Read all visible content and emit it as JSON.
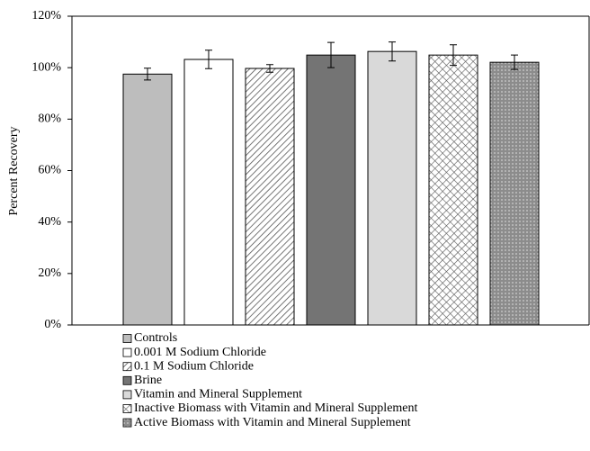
{
  "chart_data": {
    "type": "bar",
    "y_label": "Percent Recovery",
    "ylim": [
      0,
      120
    ],
    "yticks": [
      {
        "value": 0,
        "label": "0%"
      },
      {
        "value": 20,
        "label": "20%"
      },
      {
        "value": 40,
        "label": "40%"
      },
      {
        "value": 60,
        "label": "60%"
      },
      {
        "value": 80,
        "label": "80%"
      },
      {
        "value": 100,
        "label": "100%"
      },
      {
        "value": 120,
        "label": "120%"
      }
    ],
    "grid": false,
    "legend": "bottom",
    "series": [
      {
        "name": "Controls",
        "color": "#bdbdbd",
        "pattern": "solid",
        "values": [
          97.5
        ],
        "errors": [
          2.3
        ]
      },
      {
        "name": "0.001 M Sodium Chloride",
        "color": "#ffffff",
        "pattern": "solid",
        "values": [
          103.2
        ],
        "errors": [
          3.6
        ]
      },
      {
        "name": "0.1 M Sodium Chloride",
        "color": "#555555",
        "pattern": "diagonal",
        "values": [
          99.7
        ],
        "errors": [
          1.5
        ]
      },
      {
        "name": "Brine",
        "color": "#747474",
        "pattern": "solid",
        "values": [
          104.9
        ],
        "errors": [
          4.9
        ]
      },
      {
        "name": "Vitamin and Mineral Supplement",
        "color": "#d9d9d9",
        "pattern": "solid",
        "values": [
          106.3
        ],
        "errors": [
          3.7
        ]
      },
      {
        "name": "Inactive Biomass with Vitamin and Mineral Supplement",
        "color": "#555555",
        "pattern": "crosshatch",
        "values": [
          104.9
        ],
        "errors": [
          4.0
        ]
      },
      {
        "name": "Active Biomass with Vitamin and Mineral Supplement",
        "color": "#8c8c8c",
        "pattern": "dots",
        "values": [
          102.1
        ],
        "errors": [
          2.8
        ]
      }
    ]
  }
}
